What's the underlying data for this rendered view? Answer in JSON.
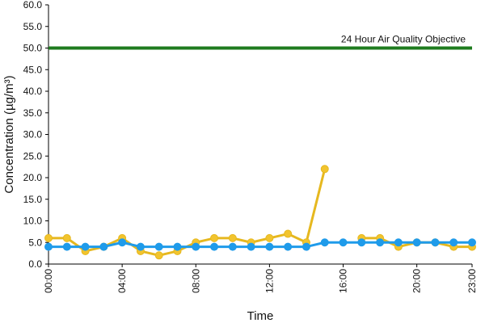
{
  "chart_data": {
    "type": "line",
    "xlabel": "Time",
    "ylabel": "Concentration (µg/m³)",
    "ylim": [
      0,
      60
    ],
    "yticks": [
      "0.0",
      "5.0",
      "10.0",
      "15.0",
      "20.0",
      "25.0",
      "30.0",
      "35.0",
      "40.0",
      "45.0",
      "50.0",
      "55.0",
      "60.0"
    ],
    "xlim": [
      0,
      23
    ],
    "xtick_hours": [
      0,
      4,
      8,
      12,
      16,
      20,
      23
    ],
    "xticks": [
      "00:00",
      "04:00",
      "08:00",
      "12:00",
      "16:00",
      "20:00",
      "23:00"
    ],
    "grid": false,
    "objective": {
      "label": "24 Hour Air Quality Objective",
      "value": 50,
      "color": "#1e7b1e"
    },
    "series": [
      {
        "color": "#f2c42e",
        "stroke": "#e6b81f",
        "x": [
          0,
          1,
          2,
          3,
          4,
          5,
          6,
          7,
          8,
          9,
          10,
          11,
          12,
          13,
          14,
          15,
          16,
          17,
          18,
          19,
          20,
          21,
          22,
          23
        ],
        "values": [
          6,
          6,
          3,
          4,
          6,
          3,
          2,
          3,
          5,
          6,
          6,
          5,
          6,
          7,
          5,
          22,
          null,
          6,
          6,
          4,
          5,
          5,
          4,
          4
        ]
      },
      {
        "color": "#1f9bea",
        "stroke": "#1f9bea",
        "x": [
          0,
          1,
          2,
          3,
          4,
          5,
          6,
          7,
          8,
          9,
          10,
          11,
          12,
          13,
          14,
          15,
          16,
          17,
          18,
          19,
          20,
          21,
          22,
          23
        ],
        "values": [
          4,
          4,
          4,
          4,
          5,
          4,
          4,
          4,
          4,
          4,
          4,
          4,
          4,
          4,
          4,
          5,
          5,
          5,
          5,
          5,
          5,
          5,
          5,
          5
        ]
      }
    ]
  }
}
